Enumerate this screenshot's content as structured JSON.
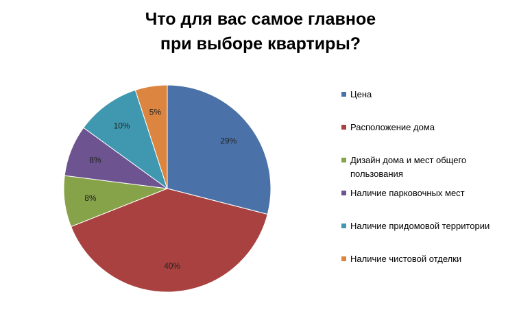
{
  "chart_data": {
    "type": "pie",
    "title_lines": [
      "Что для вас самое главное",
      "при выборе квартиры?"
    ],
    "categories": [
      "Цена",
      "Расположение дома",
      "Дизайн дома и мест общего пользования",
      "Наличие парковочных мест",
      "Наличие придомовой территории",
      "Наличие чистовой отделки"
    ],
    "values": [
      29,
      40,
      8,
      8,
      10,
      5
    ],
    "data_labels": [
      "29%",
      "40%",
      "8%",
      "8%",
      "10%",
      "5%"
    ],
    "colors": [
      "#4a72a8",
      "#a8413f",
      "#87a34a",
      "#6d5490",
      "#3f98b0",
      "#db8540"
    ],
    "legend_position": "right",
    "start_angle": "12 o'clock",
    "direction": "clockwise"
  }
}
